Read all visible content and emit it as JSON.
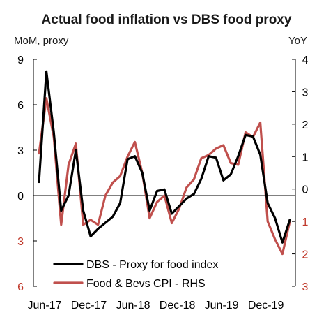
{
  "chart_data": {
    "type": "line",
    "title": "Actual food inflation vs DBS food proxy",
    "left_axis": {
      "label": "MoM, proxy",
      "ylim": [
        -6,
        9
      ],
      "ticks": [
        {
          "value": 9,
          "label": "9",
          "color": "#000000"
        },
        {
          "value": 6,
          "label": "6",
          "color": "#000000"
        },
        {
          "value": 3,
          "label": "3",
          "color": "#000000"
        },
        {
          "value": 0,
          "label": "0",
          "color": "#000000"
        },
        {
          "value": -3,
          "label": "3",
          "color": "#c0392b"
        },
        {
          "value": -6,
          "label": "6",
          "color": "#c0392b"
        }
      ]
    },
    "right_axis": {
      "label": "YoY",
      "ylim": [
        -3,
        4
      ],
      "ticks": [
        {
          "value": 4,
          "label": "4",
          "color": "#000000"
        },
        {
          "value": 3,
          "label": "3",
          "color": "#000000"
        },
        {
          "value": 2,
          "label": "2",
          "color": "#000000"
        },
        {
          "value": 1,
          "label": "1",
          "color": "#000000"
        },
        {
          "value": 0,
          "label": "0",
          "color": "#000000"
        },
        {
          "value": -1,
          "label": "1",
          "color": "#c0392b"
        },
        {
          "value": -2,
          "label": "2",
          "color": "#c0392b"
        },
        {
          "value": -3,
          "label": "3",
          "color": "#c0392b"
        }
      ]
    },
    "x_ticks": [
      {
        "index": 0,
        "label": "Jun-17"
      },
      {
        "index": 6,
        "label": "Dec-17"
      },
      {
        "index": 12,
        "label": "Jun-18"
      },
      {
        "index": 18,
        "label": "Dec-18"
      },
      {
        "index": 24,
        "label": "Jun-19"
      },
      {
        "index": 30,
        "label": "Dec-19"
      }
    ],
    "months": [
      "Jun-17",
      "Jul-17",
      "Aug-17",
      "Sep-17",
      "Oct-17",
      "Nov-17",
      "Dec-17",
      "Jan-18",
      "Feb-18",
      "Mar-18",
      "Apr-18",
      "May-18",
      "Jun-18",
      "Jul-18",
      "Aug-18",
      "Sep-18",
      "Oct-18",
      "Nov-18",
      "Dec-18",
      "Jan-19",
      "Feb-19",
      "Mar-19",
      "Apr-19",
      "May-19",
      "Jun-19",
      "Jul-19",
      "Aug-19",
      "Sep-19",
      "Oct-19",
      "Nov-19",
      "Dec-19",
      "Jan-20",
      "Feb-20",
      "Mar-20",
      "Apr-20"
    ],
    "series": [
      {
        "name": "DBS - Proxy for food index",
        "axis": "left",
        "color": "#000000",
        "values": [
          0.9,
          8.2,
          4.2,
          -1.0,
          0.0,
          3.0,
          -1.0,
          -2.7,
          -2.2,
          -1.8,
          -1.4,
          -0.5,
          2.4,
          2.6,
          1.5,
          -1.0,
          0.3,
          0.4,
          -1.2,
          -0.7,
          -0.2,
          0.1,
          1.1,
          2.6,
          2.5,
          1.0,
          1.4,
          2.6,
          4.0,
          3.9,
          2.7,
          -0.5,
          -1.5,
          -3.1,
          -1.6
        ]
      },
      {
        "name": "Food & Bevs CPI - RHS",
        "axis": "right",
        "color": "#c0504d",
        "values": [
          1.1,
          2.8,
          1.6,
          -1.1,
          0.75,
          1.4,
          -1.1,
          -0.95,
          -1.1,
          -0.2,
          0.2,
          0.4,
          1.0,
          1.45,
          0.5,
          -0.9,
          -0.4,
          -0.2,
          -1.05,
          -0.6,
          0.05,
          0.3,
          0.95,
          1.05,
          1.25,
          1.35,
          0.8,
          0.75,
          1.75,
          1.6,
          2.05,
          -1.0,
          -1.55,
          -2.0,
          -1.0
        ]
      }
    ],
    "legend": {
      "placement": "bottom-center"
    },
    "grid": false
  }
}
